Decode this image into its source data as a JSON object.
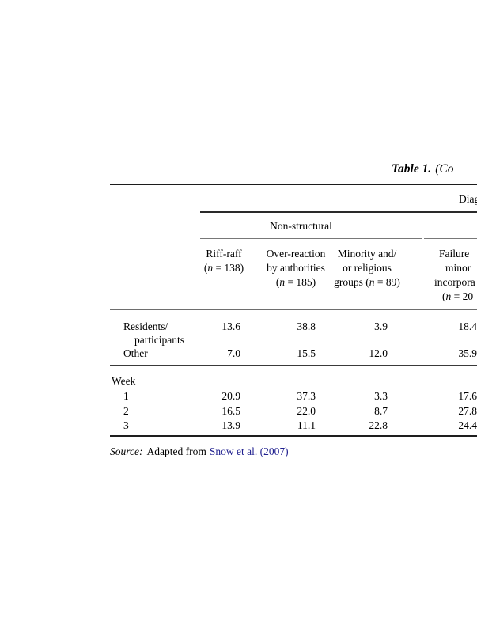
{
  "title": {
    "bold": "Table 1.",
    "rest": "(Co"
  },
  "table": {
    "spanner_top_fragment": "Diag",
    "group_header": "Non-structural",
    "columns": [
      {
        "lines": [
          "Riff-raff",
          "(n = 138)"
        ]
      },
      {
        "lines": [
          "Over-reaction",
          "by authorities",
          "(n = 185)"
        ]
      },
      {
        "lines": [
          "Minority and/",
          "or religious",
          "groups (n = 89)"
        ]
      },
      {
        "lines": [
          "Failure",
          "minor",
          "incorpora",
          "(n = 20"
        ]
      }
    ],
    "rows": [
      {
        "label": "Residents/",
        "label2": "participants",
        "values": [
          "13.6",
          "38.8",
          "3.9",
          "18.4"
        ]
      },
      {
        "label": "Other",
        "values": [
          "7.0",
          "15.5",
          "12.0",
          "35.9"
        ]
      },
      {
        "label": "Week",
        "values": []
      },
      {
        "label": "1",
        "values": [
          "20.9",
          "37.3",
          "3.3",
          "17.6"
        ]
      },
      {
        "label": "2",
        "values": [
          "16.5",
          "22.0",
          "8.7",
          "27.8"
        ]
      },
      {
        "label": "3",
        "values": [
          "13.9",
          "11.1",
          "22.8",
          "24.4"
        ]
      }
    ]
  },
  "source": {
    "prefix": "Source:",
    "middle": "Adapted from",
    "link": "Snow et al. (2007)"
  },
  "colors": {
    "link": "#20208f",
    "rule_dark": "#1c1c1c",
    "rule_light": "#787878"
  }
}
